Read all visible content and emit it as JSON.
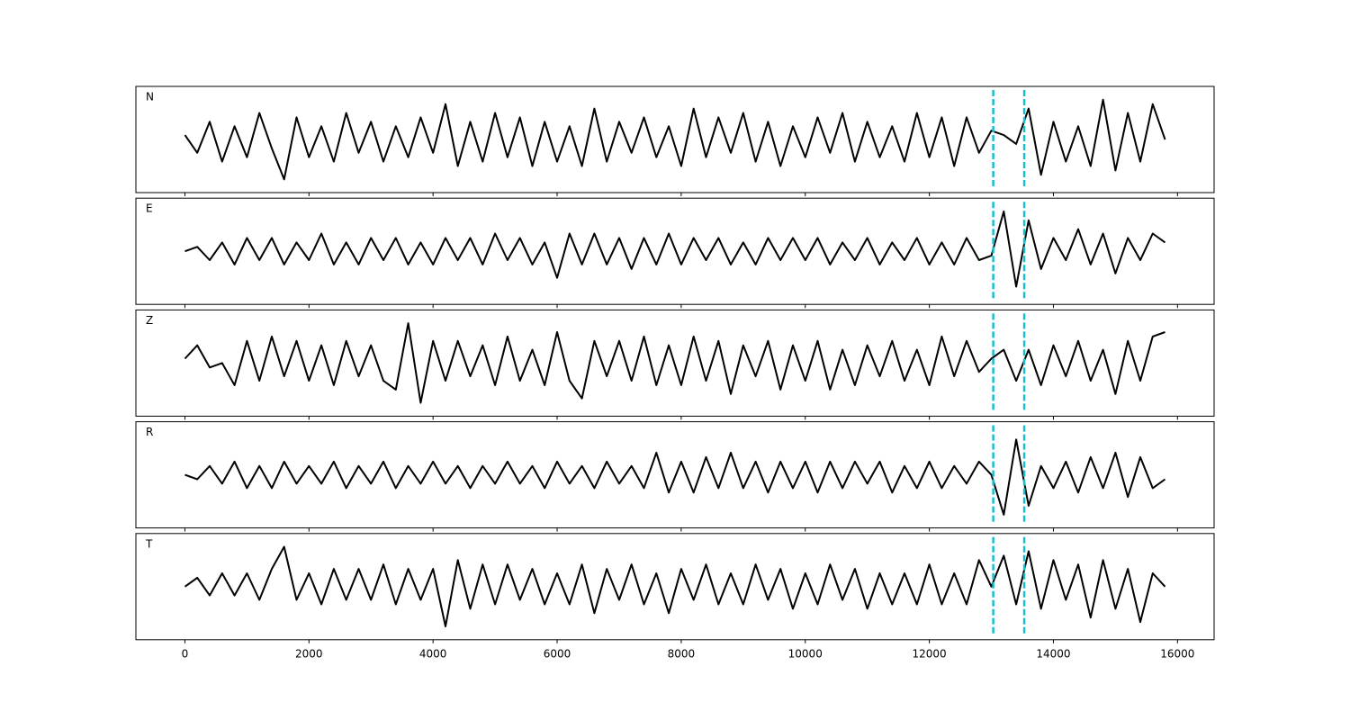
{
  "chart_data": {
    "type": "line",
    "x": [
      0,
      200,
      400,
      600,
      800,
      1000,
      1200,
      1400,
      1600,
      1800,
      2000,
      2200,
      2400,
      2600,
      2800,
      3000,
      3200,
      3400,
      3600,
      3800,
      4000,
      4200,
      4400,
      4600,
      4800,
      5000,
      5200,
      5400,
      5600,
      5800,
      6000,
      6200,
      6400,
      6600,
      6800,
      7000,
      7200,
      7400,
      7600,
      7800,
      8000,
      8200,
      8400,
      8600,
      8800,
      9000,
      9200,
      9400,
      9600,
      9800,
      10000,
      10200,
      10400,
      10600,
      10800,
      11000,
      11200,
      11400,
      11600,
      11800,
      12000,
      12200,
      12400,
      12600,
      12800,
      13000,
      13200,
      13400,
      13600,
      13800,
      14000,
      14200,
      14400,
      14600,
      14800,
      15000,
      15200,
      15400,
      15600,
      15800
    ],
    "series": [
      {
        "name": "N",
        "color": "#000000",
        "values": [
          0.1,
          -0.3,
          0.4,
          -0.5,
          0.3,
          -0.4,
          0.6,
          -0.2,
          -0.9,
          0.5,
          -0.4,
          0.3,
          -0.5,
          0.6,
          -0.3,
          0.4,
          -0.5,
          0.3,
          -0.4,
          0.5,
          -0.3,
          0.8,
          -0.6,
          0.4,
          -0.5,
          0.6,
          -0.4,
          0.5,
          -0.6,
          0.4,
          -0.5,
          0.3,
          -0.6,
          0.7,
          -0.5,
          0.4,
          -0.3,
          0.5,
          -0.4,
          0.3,
          -0.6,
          0.7,
          -0.4,
          0.5,
          -0.3,
          0.6,
          -0.5,
          0.4,
          -0.6,
          0.3,
          -0.4,
          0.5,
          -0.3,
          0.6,
          -0.5,
          0.4,
          -0.4,
          0.3,
          -0.5,
          0.6,
          -0.4,
          0.5,
          -0.6,
          0.5,
          -0.3,
          0.2,
          0.1,
          -0.1,
          0.7,
          -0.8,
          0.4,
          -0.5,
          0.3,
          -0.6,
          0.9,
          -0.7,
          0.6,
          -0.5,
          0.8,
          0.0
        ]
      },
      {
        "name": "E",
        "color": "#000000",
        "values": [
          0.0,
          0.1,
          -0.2,
          0.2,
          -0.3,
          0.3,
          -0.2,
          0.3,
          -0.3,
          0.2,
          -0.2,
          0.4,
          -0.3,
          0.2,
          -0.3,
          0.3,
          -0.2,
          0.3,
          -0.3,
          0.2,
          -0.3,
          0.3,
          -0.2,
          0.3,
          -0.3,
          0.4,
          -0.2,
          0.3,
          -0.3,
          0.2,
          -0.6,
          0.4,
          -0.3,
          0.4,
          -0.3,
          0.3,
          -0.4,
          0.3,
          -0.3,
          0.4,
          -0.3,
          0.3,
          -0.2,
          0.3,
          -0.3,
          0.2,
          -0.3,
          0.3,
          -0.2,
          0.3,
          -0.2,
          0.3,
          -0.3,
          0.2,
          -0.2,
          0.3,
          -0.3,
          0.2,
          -0.2,
          0.3,
          -0.3,
          0.2,
          -0.3,
          0.3,
          -0.2,
          -0.1,
          0.9,
          -0.8,
          0.7,
          -0.4,
          0.3,
          -0.2,
          0.5,
          -0.3,
          0.4,
          -0.5,
          0.3,
          -0.2,
          0.4,
          0.2
        ]
      },
      {
        "name": "Z",
        "color": "#000000",
        "values": [
          0.1,
          0.4,
          -0.1,
          0.0,
          -0.5,
          0.5,
          -0.4,
          0.6,
          -0.3,
          0.5,
          -0.4,
          0.4,
          -0.5,
          0.5,
          -0.3,
          0.4,
          -0.4,
          -0.6,
          0.9,
          -0.9,
          0.5,
          -0.4,
          0.5,
          -0.3,
          0.4,
          -0.5,
          0.6,
          -0.4,
          0.3,
          -0.5,
          0.7,
          -0.4,
          -0.8,
          0.5,
          -0.3,
          0.5,
          -0.4,
          0.6,
          -0.5,
          0.4,
          -0.5,
          0.6,
          -0.4,
          0.5,
          -0.7,
          0.4,
          -0.3,
          0.5,
          -0.6,
          0.4,
          -0.4,
          0.5,
          -0.6,
          0.3,
          -0.5,
          0.4,
          -0.3,
          0.5,
          -0.4,
          0.3,
          -0.5,
          0.6,
          -0.3,
          0.5,
          -0.2,
          0.1,
          0.3,
          -0.4,
          0.3,
          -0.5,
          0.4,
          -0.3,
          0.5,
          -0.4,
          0.3,
          -0.7,
          0.5,
          -0.4,
          0.6,
          0.7
        ]
      },
      {
        "name": "R",
        "color": "#000000",
        "values": [
          0.0,
          -0.1,
          0.2,
          -0.2,
          0.3,
          -0.3,
          0.2,
          -0.3,
          0.3,
          -0.2,
          0.2,
          -0.2,
          0.3,
          -0.3,
          0.2,
          -0.2,
          0.3,
          -0.3,
          0.2,
          -0.2,
          0.3,
          -0.2,
          0.2,
          -0.3,
          0.2,
          -0.2,
          0.3,
          -0.2,
          0.2,
          -0.3,
          0.3,
          -0.2,
          0.2,
          -0.3,
          0.3,
          -0.2,
          0.2,
          -0.3,
          0.5,
          -0.4,
          0.3,
          -0.4,
          0.4,
          -0.3,
          0.5,
          -0.3,
          0.3,
          -0.4,
          0.3,
          -0.3,
          0.3,
          -0.4,
          0.3,
          -0.3,
          0.3,
          -0.2,
          0.3,
          -0.4,
          0.2,
          -0.3,
          0.3,
          -0.3,
          0.2,
          -0.2,
          0.3,
          0.0,
          -0.9,
          0.8,
          -0.7,
          0.2,
          -0.3,
          0.3,
          -0.4,
          0.4,
          -0.3,
          0.5,
          -0.5,
          0.4,
          -0.3,
          -0.1
        ]
      },
      {
        "name": "T",
        "color": "#000000",
        "values": [
          0.0,
          0.2,
          -0.2,
          0.3,
          -0.2,
          0.3,
          -0.3,
          0.4,
          0.9,
          -0.3,
          0.3,
          -0.4,
          0.4,
          -0.3,
          0.4,
          -0.3,
          0.5,
          -0.4,
          0.4,
          -0.3,
          0.4,
          -0.9,
          0.6,
          -0.5,
          0.5,
          -0.4,
          0.5,
          -0.3,
          0.4,
          -0.4,
          0.3,
          -0.4,
          0.5,
          -0.6,
          0.4,
          -0.3,
          0.5,
          -0.4,
          0.3,
          -0.6,
          0.4,
          -0.3,
          0.5,
          -0.4,
          0.3,
          -0.4,
          0.5,
          -0.3,
          0.4,
          -0.5,
          0.3,
          -0.4,
          0.5,
          -0.3,
          0.4,
          -0.5,
          0.3,
          -0.4,
          0.3,
          -0.4,
          0.5,
          -0.4,
          0.3,
          -0.4,
          0.6,
          0.0,
          0.7,
          -0.4,
          0.8,
          -0.5,
          0.6,
          -0.3,
          0.5,
          -0.7,
          0.6,
          -0.5,
          0.4,
          -0.8,
          0.3,
          0.0
        ]
      }
    ],
    "xlim": [
      -790,
      16590
    ],
    "xticks": [
      0,
      2000,
      4000,
      6000,
      8000,
      10000,
      12000,
      14000,
      16000
    ],
    "ylim": [
      -1.2,
      1.2
    ],
    "vlines": [
      13030,
      13530
    ],
    "vline_color": "#17becf",
    "vline_style": "dashed"
  }
}
